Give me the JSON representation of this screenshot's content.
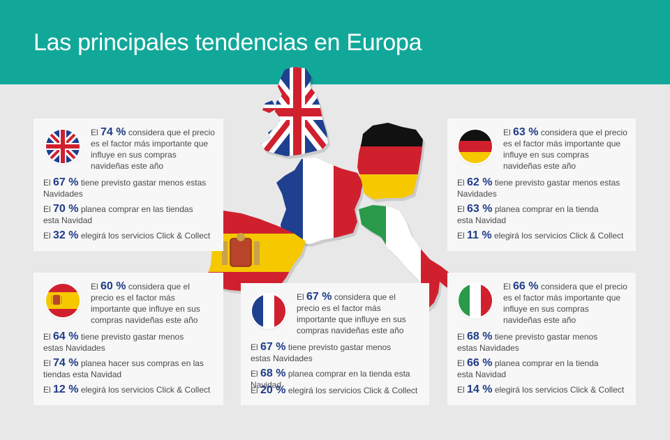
{
  "header": {
    "title": "Las principales tendencias en Europa"
  },
  "cards": {
    "uk": {
      "flag_icon": "uk-flag-icon",
      "rows": [
        {
          "pre": "El ",
          "pct": "74 %",
          "text": " considera que el precio es el factor más importante que influye en sus compras navideñas este año"
        },
        {
          "pre": "El ",
          "pct": "67 %",
          "text": " tiene previsto gastar menos estas Navidades"
        },
        {
          "pre": "El ",
          "pct": "70 %",
          "text": " planea comprar en las tiendas esta Navidad"
        },
        {
          "pre": "El ",
          "pct": "32 %",
          "text": " elegirá los servicios Click & Collect"
        }
      ]
    },
    "de": {
      "flag_icon": "germany-flag-icon",
      "rows": [
        {
          "pre": "El ",
          "pct": "63 %",
          "text": " considera que el precio es el factor más importante que influye en sus compras navideñas este año"
        },
        {
          "pre": "El ",
          "pct": "62 %",
          "text": " tiene previsto gastar menos estas Navidades"
        },
        {
          "pre": "El ",
          "pct": "63 %",
          "text": " planea comprar en la tienda esta Navidad"
        },
        {
          "pre": "El ",
          "pct": "11 %",
          "text": " elegirá los servicios Click & Collect"
        }
      ]
    },
    "es": {
      "flag_icon": "spain-flag-icon",
      "rows": [
        {
          "pre": "El ",
          "pct": "60 %",
          "text": " considera que el precio es el factor más importante que influye en sus compras navideñas este año"
        },
        {
          "pre": "El ",
          "pct": "64 %",
          "text": " tiene previsto gastar menos estas Navidades"
        },
        {
          "pre": "El ",
          "pct": "74 %",
          "text": " planea hacer sus compras en las tiendas esta Navidad"
        },
        {
          "pre": "El ",
          "pct": "12 %",
          "text": " elegirá los servicios Click & Collect"
        }
      ]
    },
    "fr": {
      "flag_icon": "france-flag-icon",
      "rows": [
        {
          "pre": "El ",
          "pct": "67 %",
          "text": " considera que el precio es el factor más importante que influye en sus compras navideñas este año"
        },
        {
          "pre": "El ",
          "pct": "67 %",
          "text": " tiene previsto gastar menos estas Navidades"
        },
        {
          "pre": "El ",
          "pct": "68 %",
          "text": " planea comprar en la tienda esta Navidad"
        },
        {
          "pre": "El ",
          "pct": "20 %",
          "text": " elegirá los servicios Click & Collect"
        }
      ]
    },
    "it": {
      "flag_icon": "italy-flag-icon",
      "rows": [
        {
          "pre": "El ",
          "pct": "66 %",
          "text": " considera que el precio es el factor más importante que influye en sus compras navideñas este año"
        },
        {
          "pre": "El ",
          "pct": "68 %",
          "text": " tiene previsto gastar menos estas Navidades"
        },
        {
          "pre": "El ",
          "pct": "66 %",
          "text": " planea comprar en la tienda esta Navidad"
        },
        {
          "pre": "El ",
          "pct": "14 %",
          "text": " elegirá los servicios Click & Collect"
        }
      ]
    }
  },
  "colors": {
    "header": "#11a89a",
    "background": "#e8e8e8",
    "card": "#f7f7f7",
    "accent": "#1f3c88"
  }
}
